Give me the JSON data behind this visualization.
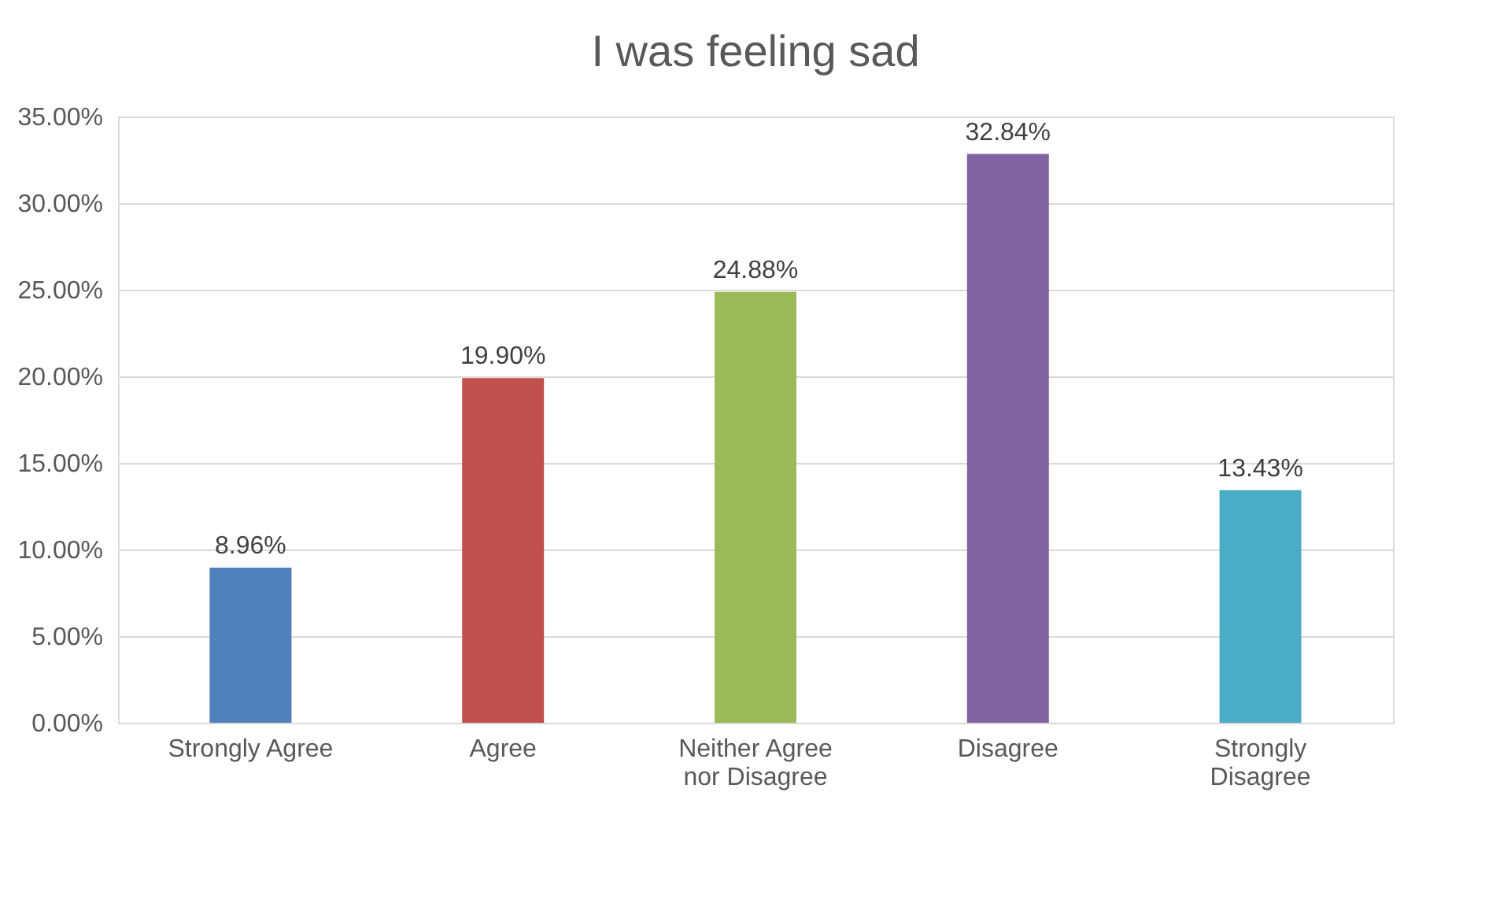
{
  "chart_data": {
    "type": "bar",
    "title": "I was feeling sad",
    "categories": [
      "Strongly Agree",
      "Agree",
      "Neither Agree nor Disagree",
      "Disagree",
      "Strongly Disagree"
    ],
    "values": [
      8.96,
      19.9,
      24.88,
      32.84,
      13.43
    ],
    "colors": [
      "#4f81bd",
      "#c0504d",
      "#9bbb59",
      "#8064a2",
      "#4bacc6"
    ],
    "value_labels": [
      "8.96%",
      "19.90%",
      "24.88%",
      "32.84%",
      "13.43%"
    ],
    "ylim": [
      0,
      35
    ],
    "yticks": [
      {
        "value": 0,
        "label": "0.00%"
      },
      {
        "value": 5,
        "label": "5.00%"
      },
      {
        "value": 10,
        "label": "10.00%"
      },
      {
        "value": 15,
        "label": "15.00%"
      },
      {
        "value": 20,
        "label": "20.00%"
      },
      {
        "value": 25,
        "label": "25.00%"
      },
      {
        "value": 30,
        "label": "30.00%"
      },
      {
        "value": 35,
        "label": "35.00%"
      }
    ],
    "grid": "y"
  }
}
